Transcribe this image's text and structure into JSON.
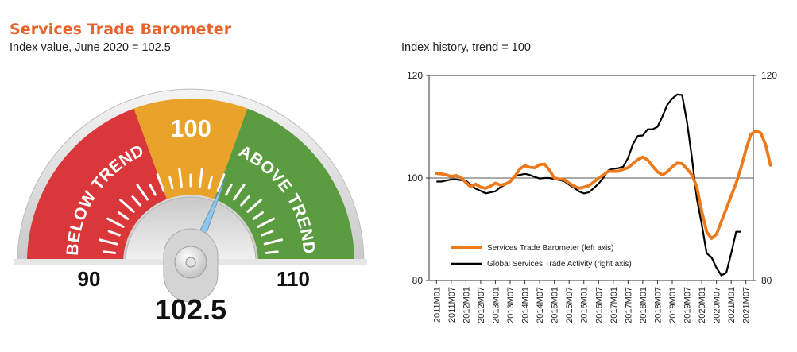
{
  "left_title": "Services Trade Barometer",
  "left_subtitle": "Index value, June 2020 = 102.5",
  "right_subtitle": "Index history, trend = 100",
  "gauge": {
    "value": 102.5,
    "value_label": "102.5",
    "min": 90,
    "max": 110,
    "min_label": "90",
    "max_label": "110",
    "top_label": "100",
    "below_label": "BELOW TREND",
    "above_label": "ABOVE TREND",
    "colors": {
      "below": "#d9373a",
      "middle": "#e9a22a",
      "above": "#5a9c3f",
      "needle": "#8ec5e8"
    }
  },
  "chart_data": {
    "type": "line",
    "title": "Index history, trend = 100",
    "xlabel": "",
    "ylabel": "",
    "ylim": [
      80,
      120
    ],
    "y2lim": [
      80,
      120
    ],
    "y_ticks": [
      "80",
      "100",
      "120"
    ],
    "y2_ticks": [
      "80",
      "120"
    ],
    "reference_line": 100,
    "x_tick_labels": [
      "2011M01",
      "2011M07",
      "2012M01",
      "2012M07",
      "2013M01",
      "2013M07",
      "2014M01",
      "2014M07",
      "2015M01",
      "2015M07",
      "2016M01",
      "2016M07",
      "2017M01",
      "2017M07",
      "2018M01",
      "2018M07",
      "2019M01",
      "2019M07",
      "2020M01",
      "2020M07",
      "2021M01",
      "2021M07"
    ],
    "legend_position": "bottom-left",
    "series": [
      {
        "name": "Services Trade Barometer (left axis)",
        "color": "#ec7a1c",
        "axis": "left",
        "points": [
          [
            0,
            100.9
          ],
          [
            0.5,
            100.8
          ],
          [
            1,
            100.6
          ],
          [
            1.5,
            100.3
          ],
          [
            2,
            100.5
          ],
          [
            2.5,
            100.1
          ],
          [
            3,
            99.1
          ],
          [
            3.5,
            98.3
          ],
          [
            4,
            98.8
          ],
          [
            4.5,
            98.2
          ],
          [
            5,
            98.0
          ],
          [
            5.5,
            98.4
          ],
          [
            6,
            99.0
          ],
          [
            6.5,
            98.6
          ],
          [
            7,
            98.8
          ],
          [
            7.5,
            99.3
          ],
          [
            8,
            100.4
          ],
          [
            8.5,
            101.8
          ],
          [
            9,
            102.4
          ],
          [
            9.5,
            102.1
          ],
          [
            10,
            102.0
          ],
          [
            10.5,
            102.6
          ],
          [
            11,
            102.7
          ],
          [
            11.5,
            101.5
          ],
          [
            12,
            100.0
          ],
          [
            12.5,
            99.8
          ],
          [
            13,
            99.7
          ],
          [
            13.5,
            99.0
          ],
          [
            14,
            98.4
          ],
          [
            14.5,
            98.0
          ],
          [
            15,
            98.2
          ],
          [
            15.5,
            98.5
          ],
          [
            16,
            99.2
          ],
          [
            16.5,
            100.0
          ],
          [
            17,
            100.6
          ],
          [
            17.5,
            101.3
          ],
          [
            18,
            101.3
          ],
          [
            18.5,
            101.3
          ],
          [
            19,
            101.7
          ],
          [
            19.5,
            102.0
          ],
          [
            20,
            102.8
          ],
          [
            20.5,
            103.6
          ],
          [
            21,
            104.1
          ],
          [
            21.5,
            103.5
          ],
          [
            22,
            102.3
          ],
          [
            22.5,
            101.2
          ],
          [
            23,
            100.6
          ],
          [
            23.5,
            101.2
          ],
          [
            24,
            102.2
          ],
          [
            24.5,
            102.9
          ],
          [
            25,
            102.8
          ],
          [
            25.5,
            101.8
          ],
          [
            26,
            100.6
          ],
          [
            26.5,
            98.3
          ],
          [
            27,
            93.5
          ],
          [
            27.5,
            89.5
          ],
          [
            28,
            88.2
          ],
          [
            28.5,
            89.0
          ],
          [
            29,
            91.5
          ],
          [
            29.5,
            94.0
          ],
          [
            30,
            96.5
          ],
          [
            30.5,
            99.0
          ],
          [
            31,
            102.0
          ],
          [
            31.5,
            105.5
          ],
          [
            32,
            108.5
          ],
          [
            32.5,
            109.2
          ],
          [
            33,
            108.8
          ],
          [
            33.5,
            106.5
          ],
          [
            34,
            102.5
          ]
        ]
      },
      {
        "name": "Global Services Trade Activity (right axis)",
        "color": "#000000",
        "axis": "right",
        "points": [
          [
            0,
            99.3
          ],
          [
            0.5,
            99.3
          ],
          [
            1,
            99.5
          ],
          [
            1.5,
            99.7
          ],
          [
            2,
            99.7
          ],
          [
            2.5,
            99.6
          ],
          [
            3,
            99.5
          ],
          [
            3.5,
            98.6
          ],
          [
            4,
            97.9
          ],
          [
            4.5,
            97.5
          ],
          [
            5,
            97.0
          ],
          [
            5.5,
            97.2
          ],
          [
            6,
            97.4
          ],
          [
            6.5,
            98.2
          ],
          [
            7,
            98.7
          ],
          [
            7.5,
            99.4
          ],
          [
            8,
            100.4
          ],
          [
            8.5,
            100.6
          ],
          [
            9,
            100.8
          ],
          [
            9.5,
            100.6
          ],
          [
            10,
            100.2
          ],
          [
            10.5,
            99.9
          ],
          [
            11,
            100.0
          ],
          [
            11.5,
            100.0
          ],
          [
            12,
            99.8
          ],
          [
            12.5,
            99.6
          ],
          [
            13,
            99.4
          ],
          [
            13.5,
            98.7
          ],
          [
            14,
            98.1
          ],
          [
            14.5,
            97.4
          ],
          [
            15,
            97.0
          ],
          [
            15.5,
            97.2
          ],
          [
            16,
            98.0
          ],
          [
            16.5,
            98.9
          ],
          [
            17,
            100.1
          ],
          [
            17.5,
            101.5
          ],
          [
            18,
            101.8
          ],
          [
            18.5,
            101.9
          ],
          [
            19,
            102.2
          ],
          [
            19.5,
            103.9
          ],
          [
            20,
            106.6
          ],
          [
            20.5,
            108.2
          ],
          [
            21,
            108.3
          ],
          [
            21.5,
            109.5
          ],
          [
            22,
            109.5
          ],
          [
            22.5,
            110.0
          ],
          [
            23,
            112.0
          ],
          [
            23.5,
            114.3
          ],
          [
            24,
            115.5
          ],
          [
            24.5,
            116.3
          ],
          [
            25,
            116.2
          ],
          [
            25.5,
            111.0
          ],
          [
            26,
            104.0
          ],
          [
            26.5,
            96.0
          ],
          [
            27,
            91.0
          ],
          [
            27.5,
            85.3
          ],
          [
            28,
            84.5
          ],
          [
            28.5,
            82.5
          ],
          [
            29,
            81.0
          ],
          [
            29.5,
            81.5
          ],
          [
            30,
            85.3
          ],
          [
            30.5,
            89.5
          ],
          [
            31,
            89.5
          ]
        ]
      }
    ]
  }
}
